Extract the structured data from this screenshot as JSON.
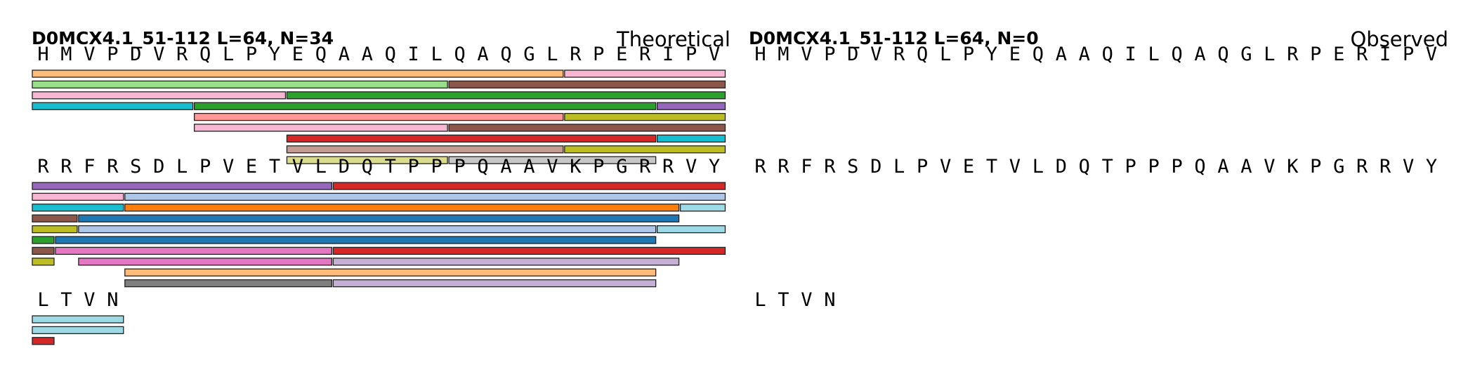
{
  "panels": [
    {
      "id": "theoretical",
      "title": "D0MCX4.1_51-112  L=64, N=34",
      "label": "Theoretical",
      "rows": [
        {
          "sequence": "HMVPDVRQLPYEQAAQILQAQGLRPERIPV",
          "peptides": [
            {
              "start": 0,
              "end": 22,
              "lane": 0,
              "color": "#ffbb78"
            },
            {
              "start": 23,
              "end": 29,
              "lane": 0,
              "color": "#f7b6d2"
            },
            {
              "start": 0,
              "end": 17,
              "lane": 1,
              "color": "#98df8a"
            },
            {
              "start": 18,
              "end": 29,
              "lane": 1,
              "color": "#8c564b"
            },
            {
              "start": 0,
              "end": 10,
              "lane": 2,
              "color": "#f7b6d2"
            },
            {
              "start": 11,
              "end": 29,
              "lane": 2,
              "color": "#2ca02c"
            },
            {
              "start": 0,
              "end": 6,
              "lane": 3,
              "color": "#17becf"
            },
            {
              "start": 7,
              "end": 26,
              "lane": 3,
              "color": "#2ca02c"
            },
            {
              "start": 27,
              "end": 29,
              "lane": 3,
              "color": "#9467bd"
            },
            {
              "start": 7,
              "end": 22,
              "lane": 4,
              "color": "#ff9896"
            },
            {
              "start": 23,
              "end": 29,
              "lane": 4,
              "color": "#bcbd22"
            },
            {
              "start": 7,
              "end": 17,
              "lane": 5,
              "color": "#f7b6d2"
            },
            {
              "start": 18,
              "end": 29,
              "lane": 5,
              "color": "#8c564b"
            },
            {
              "start": 11,
              "end": 26,
              "lane": 6,
              "color": "#d62728"
            },
            {
              "start": 27,
              "end": 29,
              "lane": 6,
              "color": "#17becf"
            },
            {
              "start": 11,
              "end": 22,
              "lane": 7,
              "color": "#c49c94"
            },
            {
              "start": 23,
              "end": 29,
              "lane": 7,
              "color": "#bcbd22"
            },
            {
              "start": 11,
              "end": 17,
              "lane": 8,
              "color": "#dbdb8d"
            },
            {
              "start": 18,
              "end": 26,
              "lane": 8,
              "color": "#c7c7c7"
            }
          ]
        },
        {
          "sequence": "RRFRSDLPVETVLDQTPPPQAAVKPGRRVY",
          "peptides": [
            {
              "start": 0,
              "end": 12,
              "lane": 0,
              "color": "#9467bd"
            },
            {
              "start": 13,
              "end": 29,
              "lane": 0,
              "color": "#d62728"
            },
            {
              "start": 0,
              "end": 3,
              "lane": 1,
              "color": "#f7b6d2"
            },
            {
              "start": 4,
              "end": 29,
              "lane": 1,
              "color": "#aec7e8"
            },
            {
              "start": 0,
              "end": 3,
              "lane": 2,
              "color": "#17becf"
            },
            {
              "start": 4,
              "end": 27,
              "lane": 2,
              "color": "#ff7f0e"
            },
            {
              "start": 28,
              "end": 29,
              "lane": 2,
              "color": "#9edae5"
            },
            {
              "start": 0,
              "end": 1,
              "lane": 3,
              "color": "#8c564b"
            },
            {
              "start": 2,
              "end": 27,
              "lane": 3,
              "color": "#1f77b4"
            },
            {
              "start": 0,
              "end": 1,
              "lane": 4,
              "color": "#bcbd22"
            },
            {
              "start": 2,
              "end": 26,
              "lane": 4,
              "color": "#aec7e8"
            },
            {
              "start": 27,
              "end": 29,
              "lane": 4,
              "color": "#9edae5"
            },
            {
              "start": 0,
              "end": 0,
              "lane": 5,
              "color": "#2ca02c"
            },
            {
              "start": 1,
              "end": 26,
              "lane": 5,
              "color": "#1f77b4"
            },
            {
              "start": 0,
              "end": 0,
              "lane": 6,
              "color": "#8c564b"
            },
            {
              "start": 1,
              "end": 12,
              "lane": 6,
              "color": "#e377c2"
            },
            {
              "start": 13,
              "end": 29,
              "lane": 6,
              "color": "#d62728"
            },
            {
              "start": 0,
              "end": 0,
              "lane": 7,
              "color": "#bcbd22"
            },
            {
              "start": 2,
              "end": 12,
              "lane": 7,
              "color": "#e377c2"
            },
            {
              "start": 13,
              "end": 27,
              "lane": 7,
              "color": "#c5b0d5"
            },
            {
              "start": 4,
              "end": 26,
              "lane": 8,
              "color": "#ffbb78"
            },
            {
              "start": 4,
              "end": 12,
              "lane": 9,
              "color": "#7f7f7f"
            },
            {
              "start": 13,
              "end": 26,
              "lane": 9,
              "color": "#c5b0d5"
            }
          ]
        },
        {
          "sequence": "LTVN",
          "peptides": [
            {
              "start": 0,
              "end": 3,
              "lane": 0,
              "color": "#9edae5"
            },
            {
              "start": 0,
              "end": 3,
              "lane": 1,
              "color": "#9edae5"
            },
            {
              "start": 0,
              "end": 0,
              "lane": 2,
              "color": "#d62728"
            }
          ]
        }
      ]
    },
    {
      "id": "observed",
      "title": "D0MCX4.1_51-112  L=64, N=0",
      "label": "Observed",
      "rows": [
        {
          "sequence": "HMVPDVRQLPYEQAAQILQAQGLRPERIPV",
          "peptides": []
        },
        {
          "sequence": "RRFRSDLPVETVLDQTPPPQAAVKPGRRVY",
          "peptides": []
        },
        {
          "sequence": "LTVN",
          "peptides": []
        }
      ]
    }
  ]
}
